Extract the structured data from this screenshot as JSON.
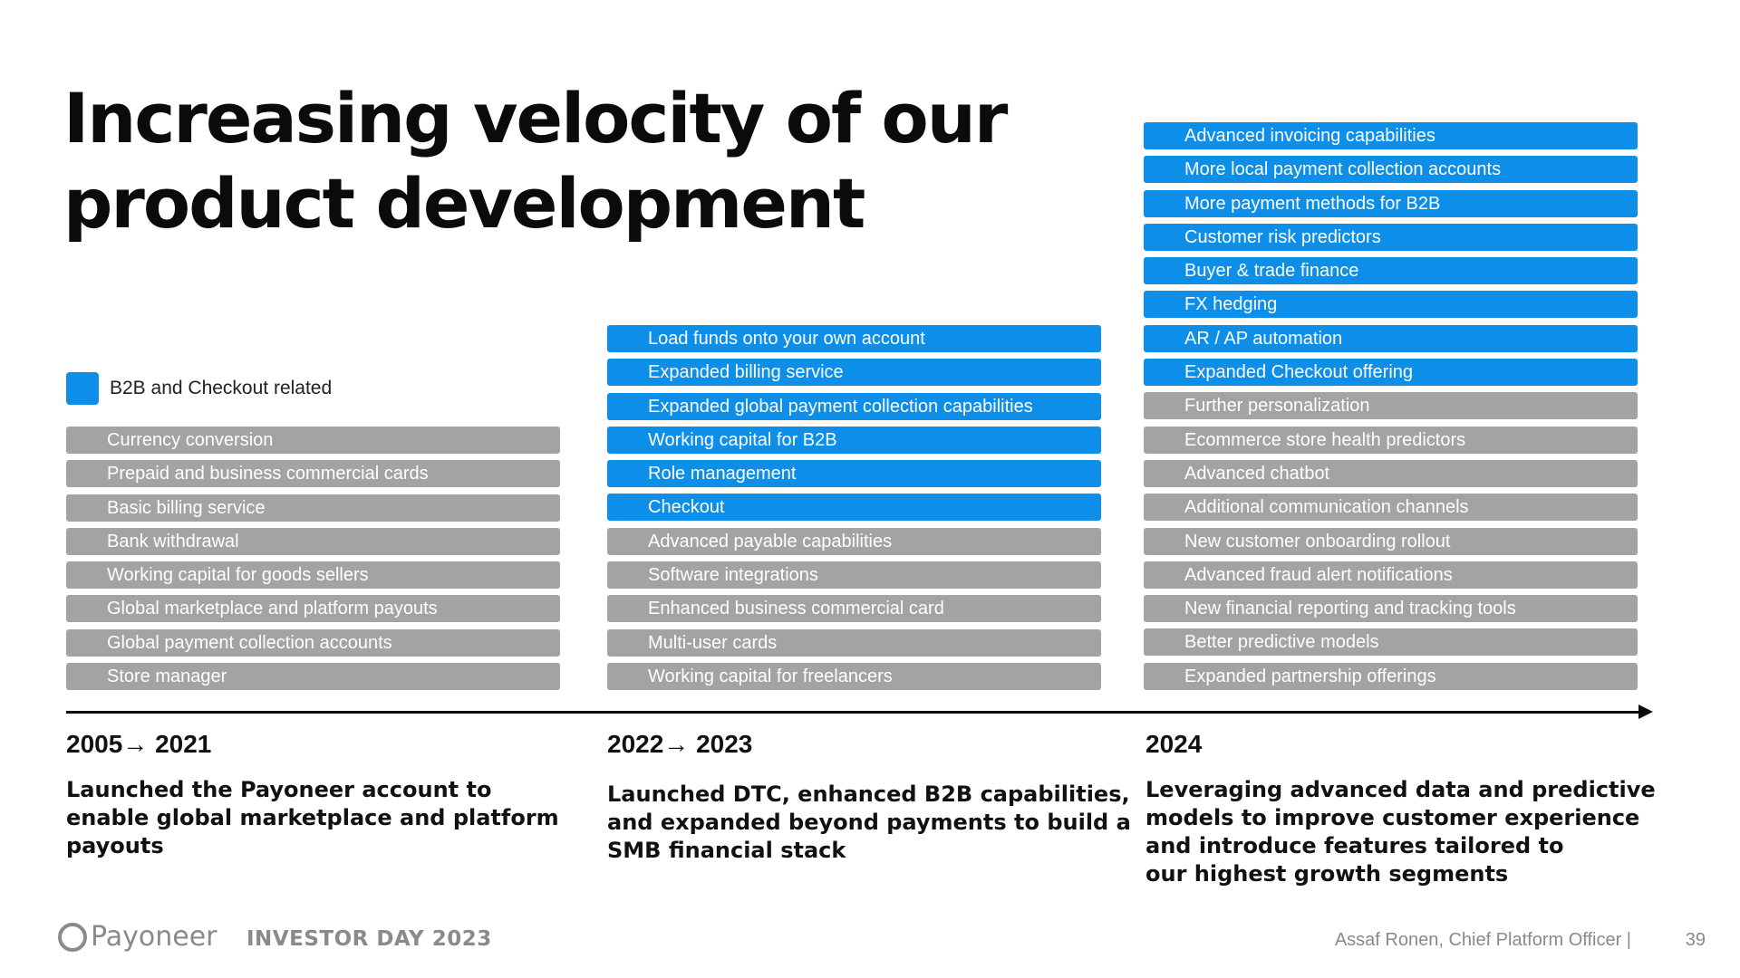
{
  "title": {
    "line1": "Increasing velocity of our",
    "line2": "product development"
  },
  "legend": {
    "label": "B2B and Checkout related",
    "color": "#0d8ee9"
  },
  "colors": {
    "b2b": "#0d8ee9",
    "other": "#a3a3a3"
  },
  "columns": [
    {
      "period": "2005→ 2021",
      "description": [
        "Launched the Payoneer account to",
        "enable global marketplace and platform",
        "payouts"
      ],
      "items": [
        {
          "label": "Currency conversion",
          "b2b": false
        },
        {
          "label": "Prepaid and business commercial cards",
          "b2b": false
        },
        {
          "label": "Basic billing service",
          "b2b": false
        },
        {
          "label": "Bank withdrawal",
          "b2b": false
        },
        {
          "label": "Working capital for goods sellers",
          "b2b": false
        },
        {
          "label": "Global marketplace and platform payouts",
          "b2b": false
        },
        {
          "label": "Global payment collection accounts",
          "b2b": false
        },
        {
          "label": "Store manager",
          "b2b": false
        }
      ]
    },
    {
      "period": "2022→ 2023",
      "description": [
        "Launched DTC, enhanced B2B capabilities,",
        "and expanded beyond payments to build a",
        "SMB financial stack"
      ],
      "items": [
        {
          "label": "Load funds onto your own account",
          "b2b": true
        },
        {
          "label": "Expanded billing service",
          "b2b": true
        },
        {
          "label": "Expanded global payment collection capabilities",
          "b2b": true
        },
        {
          "label": "Working capital for B2B",
          "b2b": true
        },
        {
          "label": "Role management",
          "b2b": true
        },
        {
          "label": "Checkout",
          "b2b": true
        },
        {
          "label": "Advanced payable capabilities",
          "b2b": false
        },
        {
          "label": "Software integrations",
          "b2b": false
        },
        {
          "label": "Enhanced business commercial card",
          "b2b": false
        },
        {
          "label": "Multi-user cards",
          "b2b": false
        },
        {
          "label": "Working capital for freelancers",
          "b2b": false
        }
      ]
    },
    {
      "period": "2024",
      "description": [
        "Leveraging advanced data and predictive",
        "models to improve customer experience",
        "and introduce features tailored to",
        "our highest growth segments"
      ],
      "items": [
        {
          "label": "Advanced invoicing capabilities",
          "b2b": true
        },
        {
          "label": "More local payment collection accounts",
          "b2b": true
        },
        {
          "label": "More payment methods for B2B",
          "b2b": true
        },
        {
          "label": "Customer risk predictors",
          "b2b": true
        },
        {
          "label": "Buyer & trade finance",
          "b2b": true
        },
        {
          "label": "FX hedging",
          "b2b": true
        },
        {
          "label": "AR / AP automation",
          "b2b": true
        },
        {
          "label": "Expanded Checkout offering",
          "b2b": true
        },
        {
          "label": "Further personalization",
          "b2b": false
        },
        {
          "label": "Ecommerce store health predictors",
          "b2b": false
        },
        {
          "label": "Advanced chatbot",
          "b2b": false
        },
        {
          "label": "Additional communication channels",
          "b2b": false
        },
        {
          "label": "New customer onboarding rollout",
          "b2b": false
        },
        {
          "label": "Advanced fraud alert notifications",
          "b2b": false
        },
        {
          "label": "New financial reporting and tracking tools",
          "b2b": false
        },
        {
          "label": "Better predictive models",
          "b2b": false
        },
        {
          "label": "Expanded partnership offerings",
          "b2b": false
        }
      ]
    }
  ],
  "footer": {
    "logo": "Payoneer",
    "event": "INVESTOR DAY 2023",
    "presenter": "Assaf Ronen, Chief Platform Officer  |",
    "page_number": "39"
  }
}
